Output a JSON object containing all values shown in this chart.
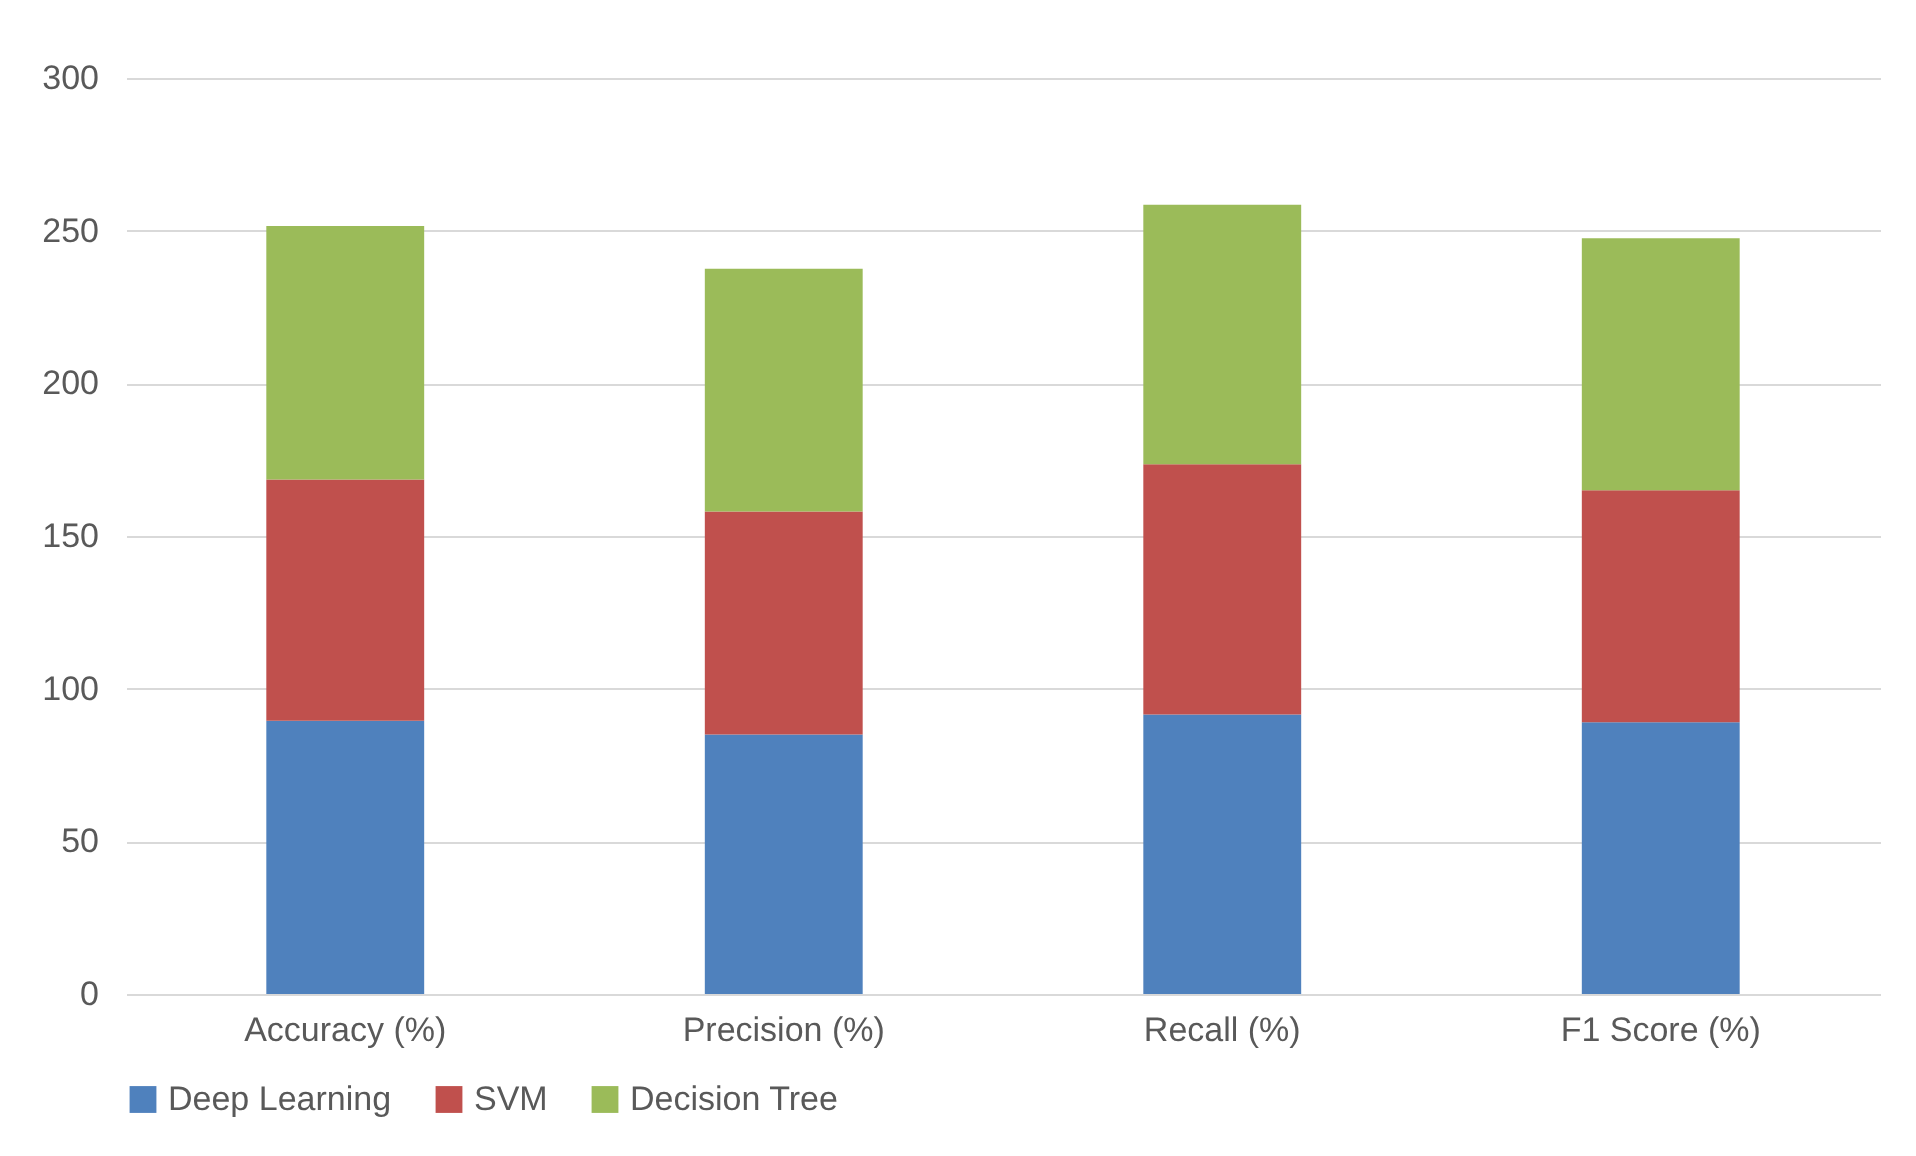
{
  "chart_data": {
    "type": "bar",
    "stacked": true,
    "categories": [
      "Accuracy (%)",
      "Precision (%)",
      "Recall (%)",
      "F1 Score (%)"
    ],
    "series": [
      {
        "name": "Deep Learning",
        "color": "#4f81bd",
        "values": [
          89.5,
          85,
          91.5,
          89
        ]
      },
      {
        "name": "SVM",
        "color": "#c0504d",
        "values": [
          79,
          73,
          82,
          76
        ]
      },
      {
        "name": "Decision Tree",
        "color": "#9bbb59",
        "values": [
          83,
          79.5,
          85,
          82.5
        ]
      }
    ],
    "ylim": [
      0,
      300
    ],
    "yticks": [
      0,
      50,
      100,
      150,
      200,
      250,
      300
    ],
    "grid": "y",
    "legend": "bottom"
  }
}
